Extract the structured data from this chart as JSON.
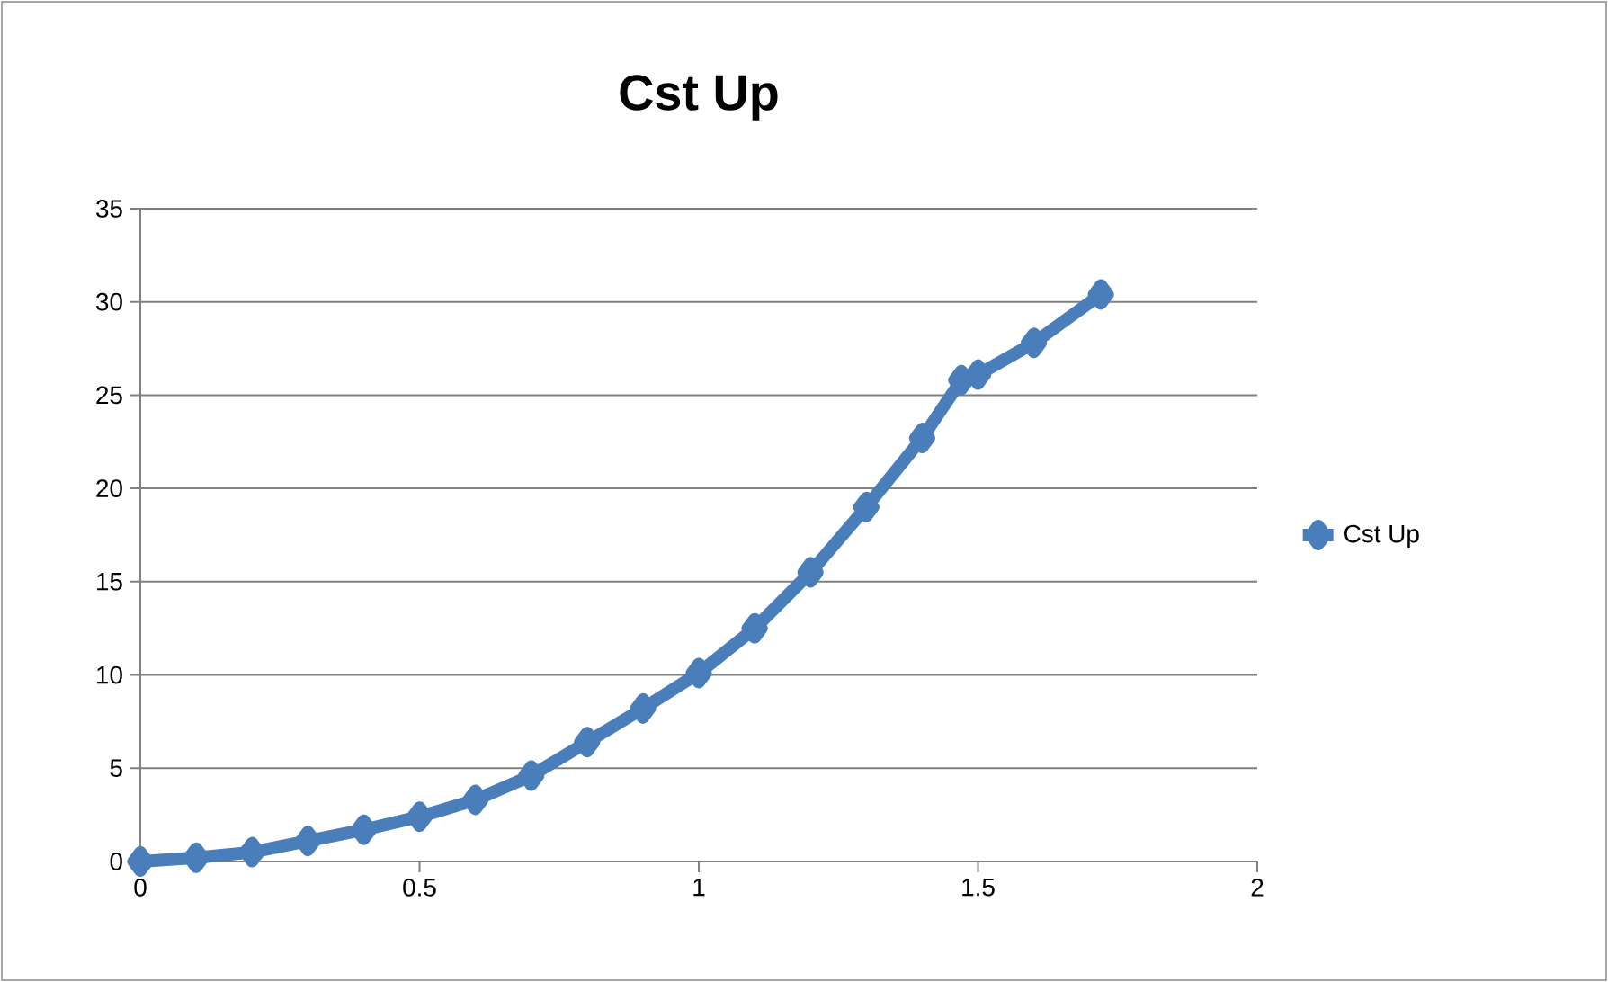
{
  "chart_data": {
    "type": "line",
    "title": "Cst Up",
    "x": [
      0,
      0.1,
      0.2,
      0.3,
      0.4,
      0.5,
      0.6,
      0.7,
      0.8,
      0.9,
      1.0,
      1.1,
      1.2,
      1.3,
      1.4,
      1.47,
      1.5,
      1.6,
      1.72
    ],
    "series": [
      {
        "name": "Cst Up",
        "color": "#4a7ebb",
        "values": [
          0,
          0.2,
          0.5,
          1.1,
          1.7,
          2.4,
          3.3,
          4.6,
          6.4,
          8.2,
          10.1,
          12.5,
          15.5,
          19.0,
          22.7,
          25.8,
          26.1,
          27.8,
          30.4
        ]
      }
    ],
    "xlim": [
      0,
      2
    ],
    "xticks": [
      0,
      0.5,
      1,
      1.5,
      2
    ],
    "ylim": [
      0,
      35
    ],
    "yticks": [
      0,
      5,
      10,
      15,
      20,
      25,
      30,
      35
    ],
    "grid": "y",
    "legend": "right",
    "marker": "diamond",
    "line_style": "solid"
  }
}
